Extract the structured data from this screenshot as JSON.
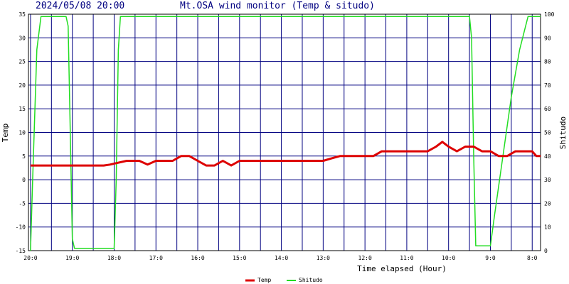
{
  "header": {
    "timestamp": "2024/05/08 20:00",
    "title": "Mt.OSA wind monitor (Temp & situdo)"
  },
  "colors": {
    "grid": "#000080",
    "axis": "#000000",
    "temp": "#dd0000",
    "shitudo": "#22dd22",
    "title": "#000080"
  },
  "chart_data": {
    "type": "line",
    "xlabel": "Time elapsed (Hour)",
    "ylabel_left": "Temp",
    "ylabel_right": "Shitudo",
    "x_range_hours_ago": [
      20.05,
      7.8
    ],
    "y_left_range": [
      -15,
      35
    ],
    "y_right_range": [
      0,
      100
    ],
    "y_left_ticks": [
      35,
      30,
      25,
      20,
      15,
      10,
      5,
      0,
      -5,
      -10,
      -15
    ],
    "y_right_ticks": [
      100,
      90,
      80,
      70,
      60,
      50,
      40,
      30,
      20,
      10,
      0
    ],
    "x_ticks": [
      {
        "label": "20:0",
        "hours_ago": 20
      },
      {
        "label": "19:0",
        "hours_ago": 19
      },
      {
        "label": "18:0",
        "hours_ago": 18
      },
      {
        "label": "17:0",
        "hours_ago": 17
      },
      {
        "label": "16:0",
        "hours_ago": 16
      },
      {
        "label": "15:0",
        "hours_ago": 15
      },
      {
        "label": "14:0",
        "hours_ago": 14
      },
      {
        "label": "13:0",
        "hours_ago": 13
      },
      {
        "label": "12:0",
        "hours_ago": 12
      },
      {
        "label": "11:0",
        "hours_ago": 11
      },
      {
        "label": "10:0",
        "hours_ago": 10
      },
      {
        "label": "9:0",
        "hours_ago": 9
      },
      {
        "label": "8:0",
        "hours_ago": 8
      }
    ],
    "grid": true,
    "legend_position": "bottom-center",
    "series": [
      {
        "name": "Temp",
        "axis": "left",
        "points": [
          [
            20.0,
            3
          ],
          [
            18.35,
            3
          ],
          [
            18.25,
            3
          ],
          [
            18.1,
            3.2
          ],
          [
            17.95,
            3.5
          ],
          [
            17.7,
            4
          ],
          [
            17.4,
            4
          ],
          [
            17.2,
            3.2
          ],
          [
            17.0,
            4
          ],
          [
            16.6,
            4
          ],
          [
            16.4,
            5
          ],
          [
            16.2,
            5
          ],
          [
            16.0,
            4
          ],
          [
            15.8,
            3
          ],
          [
            15.6,
            3
          ],
          [
            15.4,
            4
          ],
          [
            15.2,
            3
          ],
          [
            15.0,
            4
          ],
          [
            14.0,
            4
          ],
          [
            13.6,
            4
          ],
          [
            13.0,
            4
          ],
          [
            12.8,
            4.5
          ],
          [
            12.6,
            5
          ],
          [
            12.0,
            5
          ],
          [
            11.8,
            5
          ],
          [
            11.6,
            6
          ],
          [
            10.5,
            6
          ],
          [
            10.3,
            7
          ],
          [
            10.15,
            8
          ],
          [
            10.0,
            7
          ],
          [
            9.8,
            6
          ],
          [
            9.6,
            7
          ],
          [
            9.4,
            7
          ],
          [
            9.2,
            6
          ],
          [
            9.0,
            6
          ],
          [
            8.8,
            5
          ],
          [
            8.6,
            5
          ],
          [
            8.4,
            6
          ],
          [
            8.0,
            6
          ],
          [
            7.9,
            5
          ],
          [
            7.8,
            5
          ]
        ]
      },
      {
        "name": "Shitudo",
        "axis": "right",
        "points": [
          [
            20.0,
            0
          ],
          [
            19.95,
            30
          ],
          [
            19.85,
            85
          ],
          [
            19.75,
            99
          ],
          [
            19.15,
            99
          ],
          [
            19.1,
            95
          ],
          [
            19.05,
            50
          ],
          [
            19.0,
            5
          ],
          [
            18.95,
            1
          ],
          [
            18.0,
            1
          ],
          [
            17.95,
            30
          ],
          [
            17.9,
            85
          ],
          [
            17.85,
            99
          ],
          [
            9.5,
            99
          ],
          [
            9.45,
            90
          ],
          [
            9.4,
            40
          ],
          [
            9.35,
            2
          ],
          [
            9.0,
            2
          ],
          [
            8.9,
            15
          ],
          [
            8.7,
            40
          ],
          [
            8.5,
            65
          ],
          [
            8.3,
            85
          ],
          [
            8.1,
            99
          ],
          [
            7.8,
            99
          ]
        ]
      }
    ]
  }
}
